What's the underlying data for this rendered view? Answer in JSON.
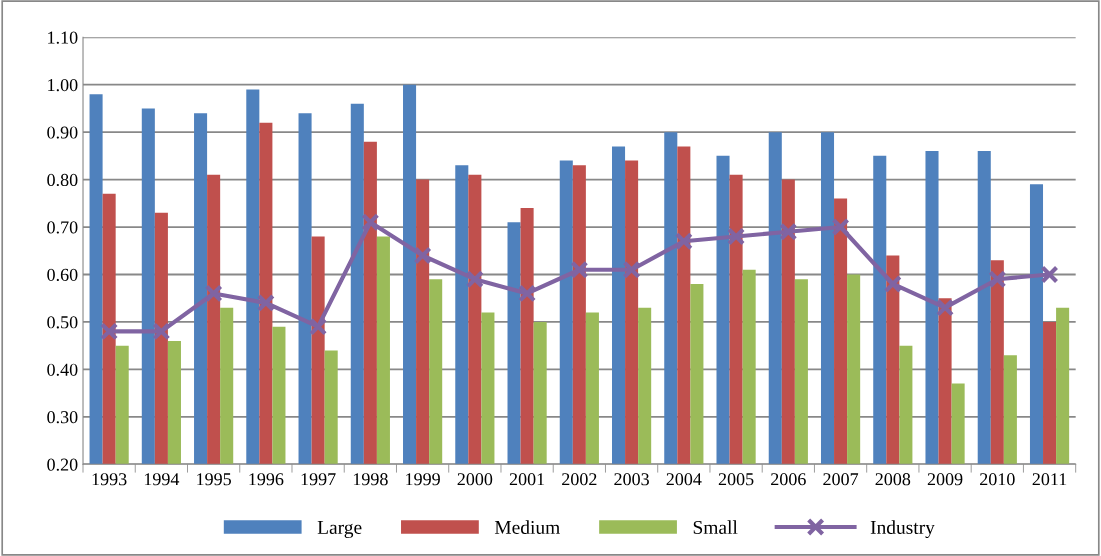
{
  "chart_data": {
    "type": "bar",
    "categories": [
      "1993",
      "1994",
      "1995",
      "1996",
      "1997",
      "1998",
      "1999",
      "2000",
      "2001",
      "2002",
      "2003",
      "2004",
      "2005",
      "2006",
      "2007",
      "2008",
      "2009",
      "2010",
      "2011"
    ],
    "series": [
      {
        "name": "Large",
        "color": "#4f81bd",
        "values": [
          0.98,
          0.95,
          0.94,
          0.99,
          0.94,
          0.96,
          1.0,
          0.83,
          0.71,
          0.84,
          0.87,
          0.9,
          0.85,
          0.9,
          0.9,
          0.85,
          0.86,
          0.86,
          0.79
        ]
      },
      {
        "name": "Medium",
        "color": "#c0504d",
        "values": [
          0.77,
          0.73,
          0.81,
          0.92,
          0.68,
          0.88,
          0.8,
          0.81,
          0.74,
          0.83,
          0.84,
          0.87,
          0.81,
          0.8,
          0.76,
          0.64,
          0.55,
          0.63,
          0.5
        ]
      },
      {
        "name": "Small",
        "color": "#9bbb59",
        "values": [
          0.45,
          0.46,
          0.53,
          0.49,
          0.44,
          0.68,
          0.59,
          0.52,
          0.5,
          0.52,
          0.53,
          0.58,
          0.61,
          0.59,
          0.6,
          0.45,
          0.37,
          0.43,
          0.53
        ]
      },
      {
        "name": "Industry",
        "color": "#8064a2",
        "type": "line",
        "marker": "cross",
        "values": [
          0.48,
          0.48,
          0.56,
          0.54,
          0.49,
          0.71,
          0.64,
          0.59,
          0.56,
          0.61,
          0.61,
          0.67,
          0.68,
          0.69,
          0.7,
          0.58,
          0.53,
          0.59,
          0.6
        ]
      }
    ],
    "ylim": [
      0.2,
      1.1
    ],
    "yticks": [
      {
        "value": 0.2,
        "label": "0.20"
      },
      {
        "value": 0.3,
        "label": "0.30"
      },
      {
        "value": 0.4,
        "label": "0.40"
      },
      {
        "value": 0.5,
        "label": "0.50"
      },
      {
        "value": 0.6,
        "label": "0.60"
      },
      {
        "value": 0.7,
        "label": "0.70"
      },
      {
        "value": 0.8,
        "label": "0.80"
      },
      {
        "value": 0.9,
        "label": "0.90"
      },
      {
        "value": 1.0,
        "label": "1.00"
      },
      {
        "value": 1.1,
        "label": "1.10"
      }
    ],
    "grid": "y",
    "legend": "bottom"
  }
}
